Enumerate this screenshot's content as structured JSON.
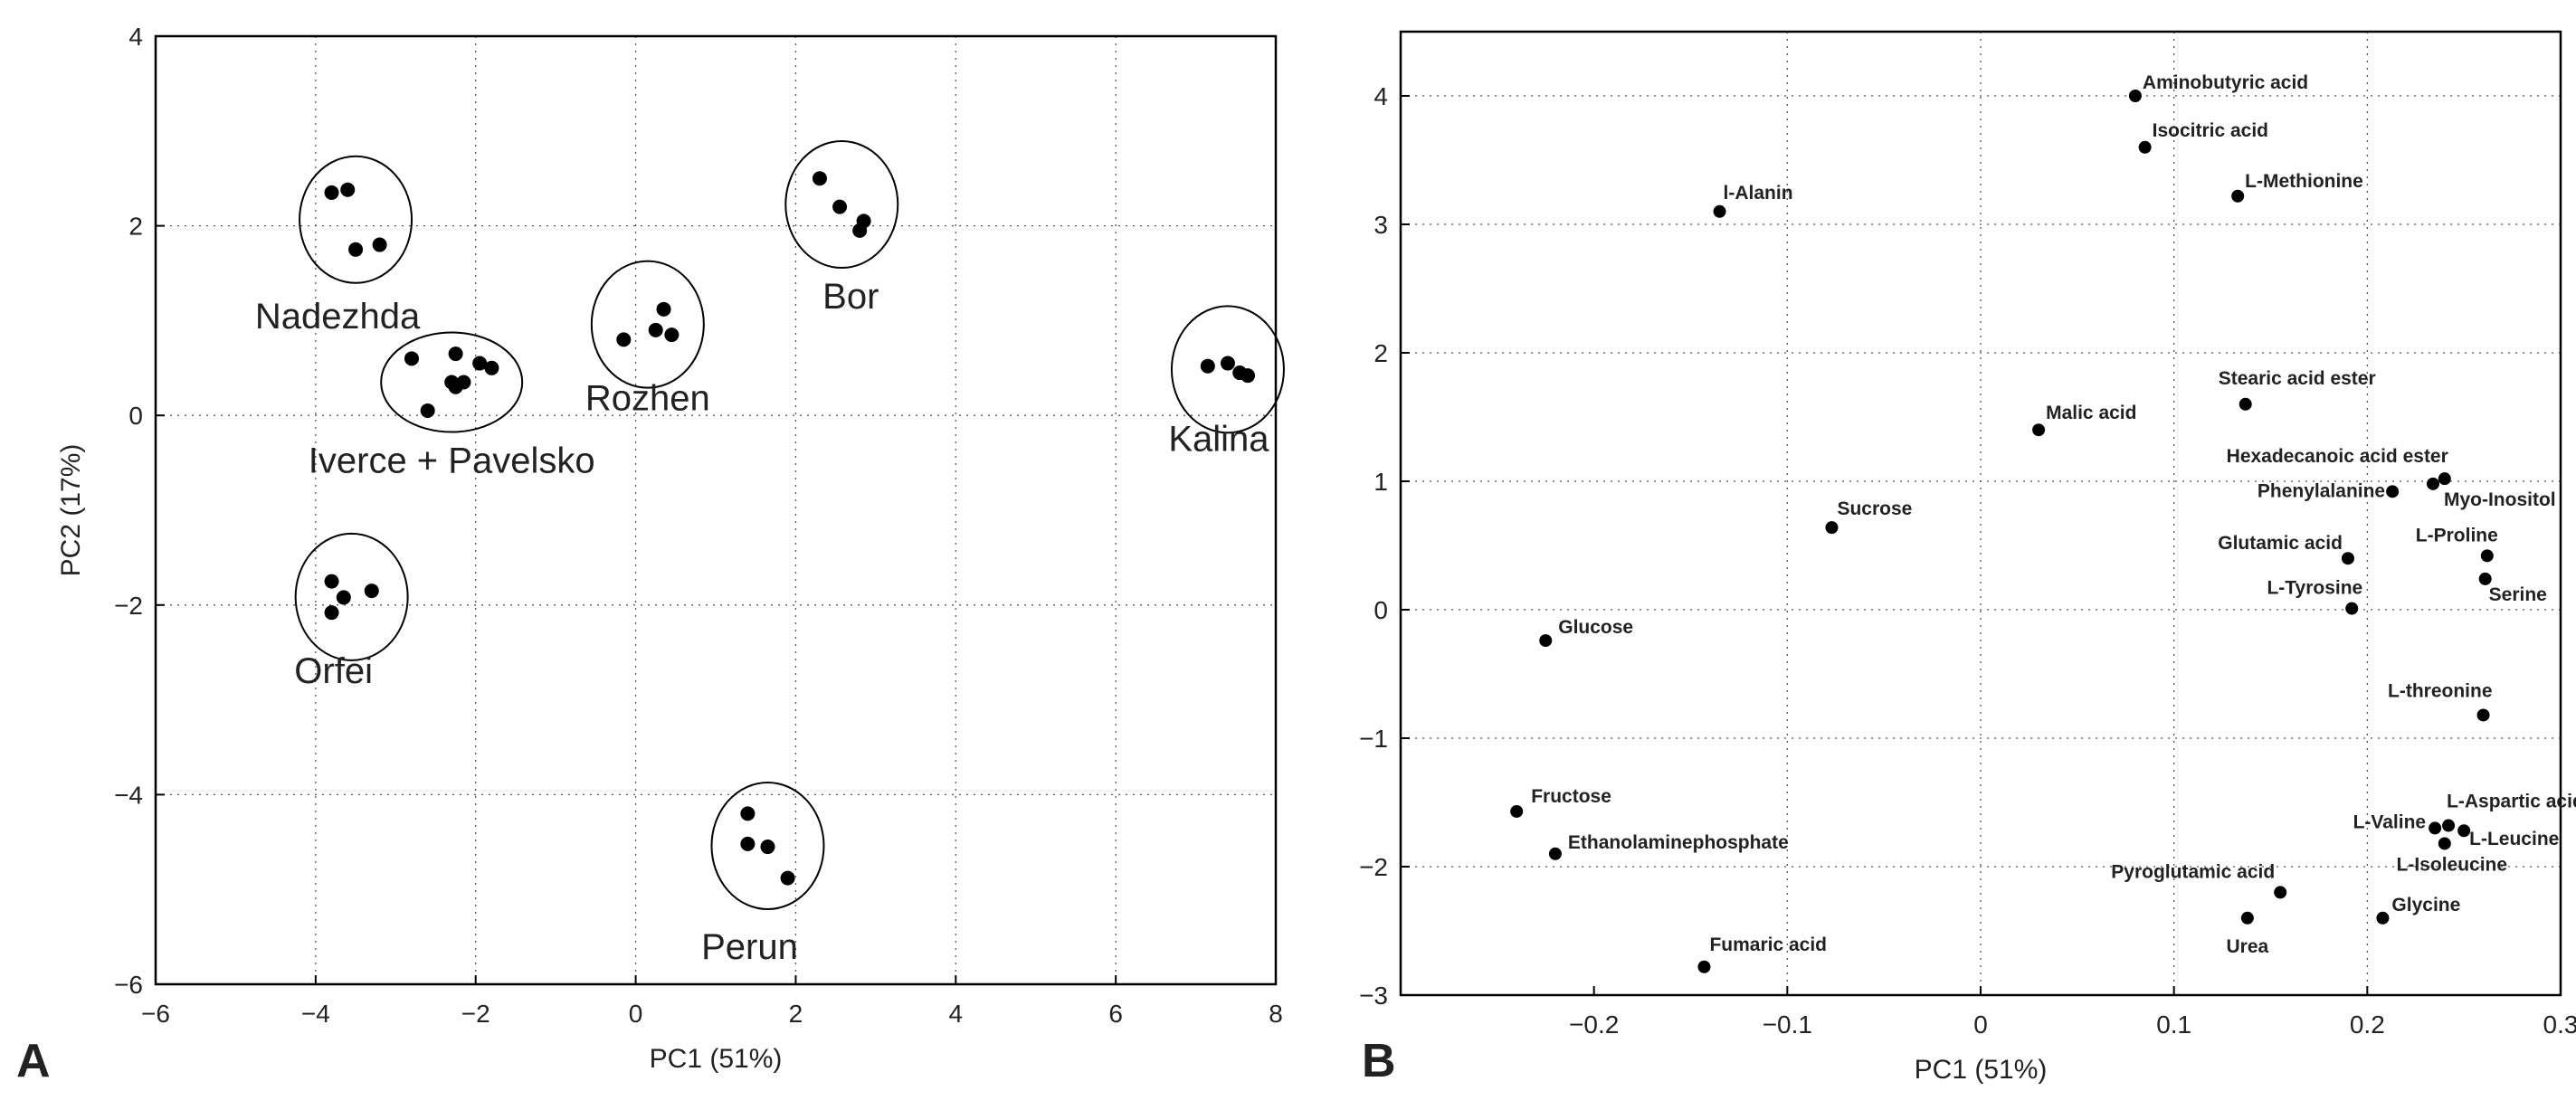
{
  "panels": {
    "a_letter": "A",
    "b_letter": "B"
  },
  "chart_data": [
    {
      "type": "scatter",
      "title": "",
      "xlabel": "PC1 (51%)",
      "ylabel": "PC2 (17%)",
      "xlim": [
        -6,
        8
      ],
      "ylim": [
        -6,
        4
      ],
      "xticks": [
        -6,
        -4,
        -2,
        0,
        2,
        4,
        6,
        8
      ],
      "yticks": [
        -6,
        -4,
        -2,
        0,
        2,
        4
      ],
      "grid": true,
      "groups": [
        {
          "name": "Nadezhda",
          "points": [
            [
              -3.8,
              2.35
            ],
            [
              -3.6,
              2.38
            ],
            [
              -3.5,
              1.75
            ],
            [
              -3.2,
              1.8
            ]
          ]
        },
        {
          "name": "Iverce + Pavelsko",
          "points": [
            [
              -2.8,
              0.6
            ],
            [
              -2.6,
              0.05
            ],
            [
              -2.25,
              0.65
            ],
            [
              -2.25,
              0.3
            ],
            [
              -2.15,
              0.35
            ],
            [
              -1.95,
              0.55
            ],
            [
              -1.8,
              0.5
            ],
            [
              -2.3,
              0.35
            ]
          ]
        },
        {
          "name": "Rozhen",
          "points": [
            [
              -0.15,
              0.8
            ],
            [
              0.25,
              0.9
            ],
            [
              0.35,
              1.12
            ],
            [
              0.45,
              0.85
            ]
          ]
        },
        {
          "name": "Bor",
          "points": [
            [
              2.3,
              2.5
            ],
            [
              2.55,
              2.2
            ],
            [
              2.85,
              2.05
            ],
            [
              2.8,
              1.95
            ]
          ]
        },
        {
          "name": "Kalina",
          "points": [
            [
              7.15,
              0.52
            ],
            [
              7.4,
              0.55
            ],
            [
              7.55,
              0.45
            ],
            [
              7.65,
              0.42
            ]
          ]
        },
        {
          "name": "Orfei",
          "points": [
            [
              -3.8,
              -1.75
            ],
            [
              -3.65,
              -1.92
            ],
            [
              -3.8,
              -2.08
            ],
            [
              -3.3,
              -1.85
            ]
          ]
        },
        {
          "name": "Perun",
          "points": [
            [
              1.4,
              -4.2
            ],
            [
              1.4,
              -4.52
            ],
            [
              1.65,
              -4.55
            ],
            [
              1.9,
              -4.88
            ]
          ]
        }
      ]
    },
    {
      "type": "scatter",
      "title": "",
      "xlabel": "PC1 (51%)",
      "ylabel": "",
      "xlim": [
        -0.3,
        0.3
      ],
      "ylim": [
        -3,
        4.5
      ],
      "xticks": [
        -0.2,
        -0.1,
        0,
        0.1,
        0.2,
        0.3
      ],
      "xtick_labels": [
        "−0.2",
        "−0.1",
        "0",
        "0.1",
        "0.2",
        "0.3"
      ],
      "yticks": [
        -3,
        -2,
        -1,
        0,
        1,
        2,
        3,
        4
      ],
      "ytick_labels": [
        "−3",
        "−2",
        "−1",
        "0",
        "1",
        "2",
        "3",
        "4"
      ],
      "grid": true,
      "points": [
        {
          "label": "Aminobutyric acid",
          "x": 0.08,
          "y": 4.0
        },
        {
          "label": "Isocitric acid",
          "x": 0.085,
          "y": 3.6
        },
        {
          "label": "L-Methionine",
          "x": 0.133,
          "y": 3.22
        },
        {
          "label": "l-Alanin",
          "x": -0.135,
          "y": 3.1
        },
        {
          "label": "Stearic acid ester",
          "x": 0.137,
          "y": 1.6
        },
        {
          "label": "Malic acid",
          "x": 0.03,
          "y": 1.4
        },
        {
          "label": "Hexadecanoic acid ester",
          "x": 0.24,
          "y": 1.02
        },
        {
          "label": "Phenylalanine",
          "x": 0.213,
          "y": 0.92
        },
        {
          "label": "Myo-Inositol",
          "x": 0.234,
          "y": 0.98
        },
        {
          "label": "Sucrose",
          "x": -0.077,
          "y": 0.64
        },
        {
          "label": "Glutamic acid",
          "x": 0.19,
          "y": 0.4
        },
        {
          "label": "L-Proline",
          "x": 0.262,
          "y": 0.42
        },
        {
          "label": "Serine",
          "x": 0.261,
          "y": 0.24
        },
        {
          "label": "L-Tyrosine",
          "x": 0.192,
          "y": 0.01
        },
        {
          "label": "Glucose",
          "x": -0.225,
          "y": -0.24
        },
        {
          "label": "L-threonine",
          "x": 0.26,
          "y": -0.82
        },
        {
          "label": "L-Aspartic acid",
          "x": 0.242,
          "y": -1.68
        },
        {
          "label": "L-Valine",
          "x": 0.235,
          "y": -1.7
        },
        {
          "label": "L-Leucine",
          "x": 0.25,
          "y": -1.72
        },
        {
          "label": "L-Isoleucine",
          "x": 0.24,
          "y": -1.82
        },
        {
          "label": "Fructose",
          "x": -0.24,
          "y": -1.57
        },
        {
          "label": "Ethanolaminephosphate",
          "x": -0.22,
          "y": -1.9
        },
        {
          "label": "Pyroglutamic acid",
          "x": 0.155,
          "y": -2.2
        },
        {
          "label": "Urea",
          "x": 0.138,
          "y": -2.4
        },
        {
          "label": "Glycine",
          "x": 0.208,
          "y": -2.4
        },
        {
          "label": "Fumaric acid",
          "x": -0.143,
          "y": -2.78
        }
      ]
    }
  ]
}
